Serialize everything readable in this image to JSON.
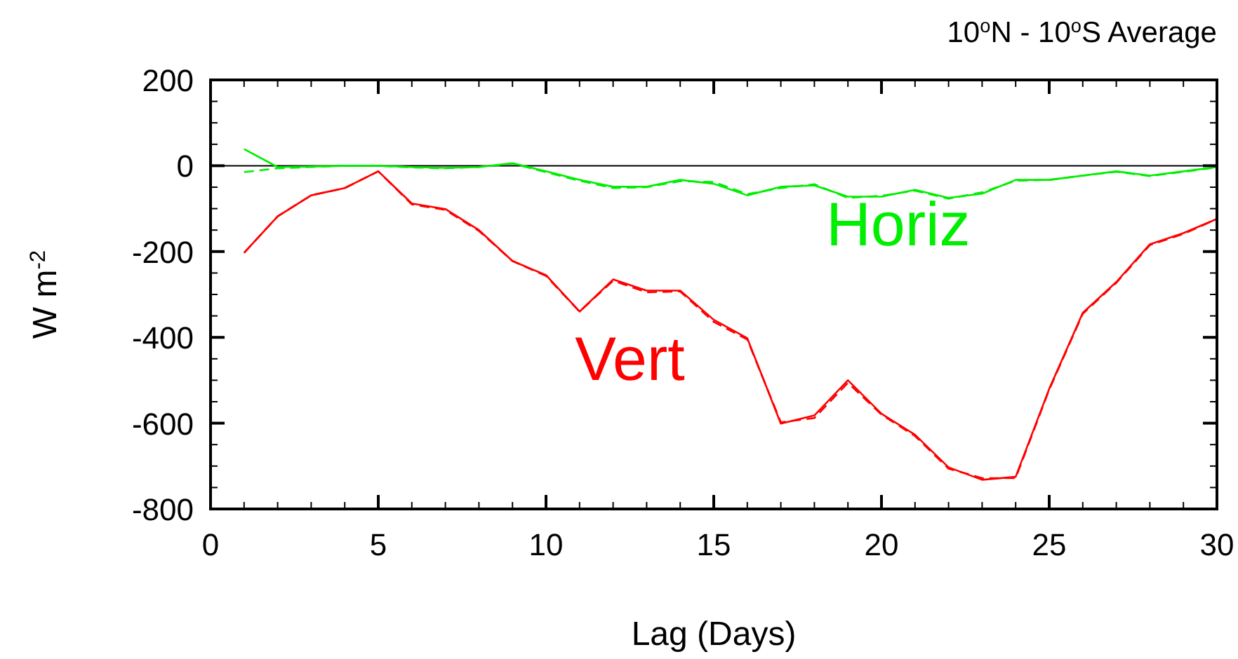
{
  "chart_data": {
    "type": "line",
    "title": "10$^{o}$N - 10$^{o}$S Average",
    "xlabel": "Lag (Days)",
    "ylabel": "W m$^{-2}$",
    "x": [
      1,
      2,
      3,
      4,
      5,
      6,
      7,
      8,
      9,
      10,
      11,
      12,
      13,
      14,
      15,
      16,
      17,
      18,
      19,
      20,
      21,
      22,
      23,
      24,
      25,
      26,
      27,
      28,
      29,
      30
    ],
    "series": [
      {
        "name": "Vert",
        "color": "#ff0000",
        "line_style": "solid",
        "values": [
          -203,
          -118,
          -69,
          -52,
          -13,
          -88,
          -101,
          -150,
          -222,
          -255,
          -340,
          -265,
          -291,
          -291,
          -359,
          -402,
          -601,
          -582,
          -500,
          -578,
          -627,
          -703,
          -732,
          -725,
          -520,
          -343,
          -271,
          -183,
          -157,
          -124
        ]
      },
      {
        "color": "#ff0000",
        "line_style": "dashed",
        "values": [
          -203,
          -118,
          -69,
          -52,
          -13,
          -90,
          -103,
          -152,
          -222,
          -257,
          -340,
          -268,
          -295,
          -293,
          -364,
          -405,
          -598,
          -588,
          -506,
          -580,
          -630,
          -706,
          -728,
          -728,
          -522,
          -345,
          -273,
          -185,
          -159,
          -124
        ]
      },
      {
        "name": "Horiz",
        "color": "#00ee00",
        "line_style": "solid",
        "values": [
          39,
          -3,
          -2,
          0,
          0,
          -3,
          -5,
          -3,
          6,
          -13,
          -33,
          -49,
          -49,
          -33,
          -42,
          -69,
          -49,
          -46,
          -72,
          -72,
          -56,
          -75,
          -65,
          -33,
          -33,
          -23,
          -13,
          -23,
          -13,
          -3
        ]
      },
      {
        "color": "#00ee00",
        "line_style": "dashed",
        "values": [
          -15,
          -6,
          -3,
          0,
          0,
          -4,
          -6,
          -3,
          5,
          -15,
          -35,
          -52,
          -50,
          -36,
          -38,
          -66,
          -52,
          -43,
          -75,
          -70,
          -58,
          -77,
          -62,
          -35,
          -33,
          -23,
          -14,
          -24,
          -14,
          -4
        ]
      }
    ],
    "xlim": [
      0,
      30
    ],
    "ylim": [
      -800,
      200
    ],
    "xticks": [
      0,
      {
        "value": 1,
        "label": null
      },
      {
        "value": 2,
        "label": null
      },
      {
        "value": 3,
        "label": null
      },
      {
        "value": 4,
        "label": null
      },
      5,
      {
        "value": 6,
        "label": null
      },
      {
        "value": 7,
        "label": null
      },
      {
        "value": 8,
        "label": null
      },
      {
        "value": 9,
        "label": null
      },
      10,
      {
        "value": 11,
        "label": null
      },
      {
        "value": 12,
        "label": null
      },
      {
        "value": 13,
        "label": null
      },
      {
        "value": 14,
        "label": null
      },
      15,
      {
        "value": 16,
        "label": null
      },
      {
        "value": 17,
        "label": null
      },
      {
        "value": 18,
        "label": null
      },
      {
        "value": 19,
        "label": null
      },
      20,
      {
        "value": 21,
        "label": null
      },
      {
        "value": 22,
        "label": null
      },
      {
        "value": 23,
        "label": null
      },
      {
        "value": 24,
        "label": null
      },
      25,
      {
        "value": 26,
        "label": null
      },
      {
        "value": 27,
        "label": null
      },
      {
        "value": 28,
        "label": null
      },
      {
        "value": 29,
        "label": null
      },
      30
    ],
    "yticks": [
      -800,
      {
        "value": -750,
        "label": null
      },
      {
        "value": -700,
        "label": null
      },
      {
        "value": -650,
        "label": null
      },
      -600,
      {
        "value": -550,
        "label": null
      },
      {
        "value": -500,
        "label": null
      },
      {
        "value": -450,
        "label": null
      },
      -400,
      {
        "value": -350,
        "label": null
      },
      {
        "value": -300,
        "label": null
      },
      {
        "value": -250,
        "label": null
      },
      -200,
      {
        "value": -150,
        "label": null
      },
      {
        "value": -100,
        "label": null
      },
      {
        "value": -50,
        "label": null
      },
      0,
      {
        "value": 50,
        "label": null
      },
      {
        "value": 100,
        "label": null
      },
      {
        "value": 150,
        "label": null
      },
      200
    ],
    "ref_lines": [
      {
        "axis": "y",
        "value": 0,
        "color": "#000000",
        "line_style": "solid"
      }
    ],
    "grid": false
  }
}
